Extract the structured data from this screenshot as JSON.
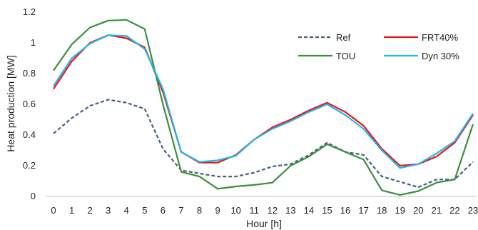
{
  "chart_data": {
    "type": "line",
    "xlabel": "Hour [h]",
    "ylabel": "Heat production [MW]",
    "ylim": [
      0,
      1.2
    ],
    "yticks": [
      "0",
      "0.2",
      "0.4",
      "0.6",
      "0.8",
      "1",
      "1.2"
    ],
    "x": [
      0,
      1,
      2,
      3,
      4,
      5,
      6,
      7,
      8,
      9,
      10,
      11,
      12,
      13,
      14,
      15,
      16,
      17,
      18,
      19,
      20,
      21,
      22,
      23
    ],
    "grid": false,
    "legend_position": "top-right",
    "series": [
      {
        "name": "Ref",
        "color": "#44607f",
        "dash": true,
        "values": [
          0.41,
          0.51,
          0.59,
          0.63,
          0.61,
          0.57,
          0.31,
          0.17,
          0.15,
          0.13,
          0.13,
          0.155,
          0.195,
          0.21,
          0.27,
          0.35,
          0.29,
          0.27,
          0.13,
          0.095,
          0.06,
          0.11,
          0.11,
          0.225
        ]
      },
      {
        "name": "FRT40%",
        "color": "#e8141e",
        "dash": false,
        "values": [
          0.7,
          0.88,
          1.0,
          1.05,
          1.03,
          0.97,
          0.68,
          0.29,
          0.22,
          0.22,
          0.27,
          0.37,
          0.45,
          0.5,
          0.56,
          0.61,
          0.55,
          0.46,
          0.31,
          0.2,
          0.21,
          0.26,
          0.35,
          0.53
        ]
      },
      {
        "name": "TOU",
        "color": "#3a8f3a",
        "dash": false,
        "values": [
          0.82,
          0.99,
          1.1,
          1.145,
          1.15,
          1.09,
          0.6,
          0.16,
          0.13,
          0.05,
          0.065,
          0.075,
          0.09,
          0.2,
          0.26,
          0.34,
          0.29,
          0.24,
          0.04,
          0.01,
          0.035,
          0.09,
          0.11,
          0.47
        ]
      },
      {
        "name": "Dyn 30%",
        "color": "#22b8e8",
        "dash": false,
        "values": [
          0.72,
          0.9,
          0.995,
          1.05,
          1.045,
          0.96,
          0.7,
          0.29,
          0.225,
          0.235,
          0.265,
          0.37,
          0.44,
          0.49,
          0.55,
          0.6,
          0.53,
          0.44,
          0.3,
          0.185,
          0.21,
          0.28,
          0.36,
          0.54
        ]
      }
    ]
  }
}
